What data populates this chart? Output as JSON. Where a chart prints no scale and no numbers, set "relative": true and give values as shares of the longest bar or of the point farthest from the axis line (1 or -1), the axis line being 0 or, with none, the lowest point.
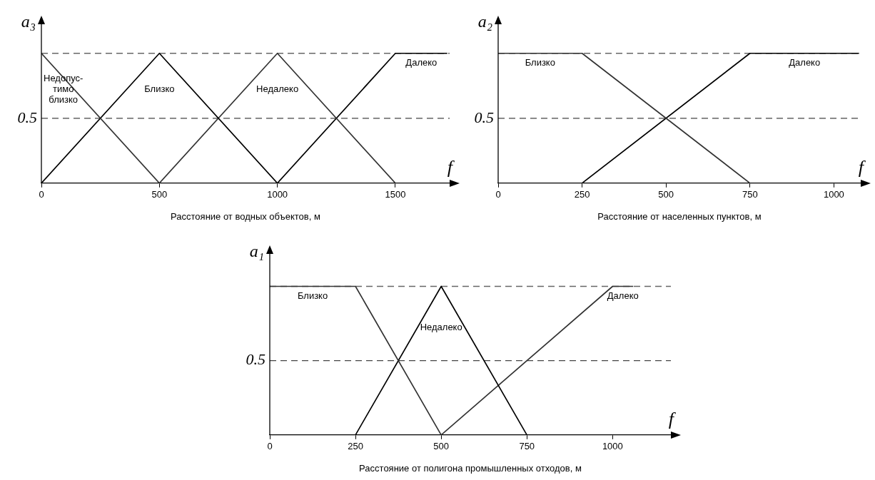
{
  "chart_data": [
    {
      "type": "line",
      "relative": true,
      "ylabel": "a₃",
      "xlabel": "Расстояние от водных объектов, м",
      "annotations": [
        "f"
      ],
      "marker": "none",
      "xlim": [
        0,
        1730
      ],
      "xticks": [
        0,
        500,
        1000,
        1500
      ],
      "series": [
        {
          "name": "Недопус-\nтимо\nблизко",
          "color": "#333333",
          "x": [
            0,
            500
          ],
          "values": [
            1,
            0
          ]
        },
        {
          "name": "Близко",
          "color": "#000000",
          "x": [
            0,
            500,
            1000
          ],
          "values": [
            0,
            1,
            0
          ]
        },
        {
          "name": "Недалеко",
          "color": "#333333",
          "x": [
            500,
            1000,
            1500
          ],
          "values": [
            0,
            1,
            0
          ]
        },
        {
          "name": "Далеко",
          "color": "#000000",
          "x": [
            1000,
            1500,
            1720
          ],
          "values": [
            0,
            1,
            1
          ]
        }
      ],
      "ref_lines": [
        {
          "axis": "y",
          "value": 0.5,
          "label": "0.5",
          "color": "#444444",
          "line_style": "dashed"
        },
        {
          "axis": "y",
          "value": 1,
          "color": "#666666",
          "line_style": "dashed"
        }
      ]
    },
    {
      "type": "line",
      "relative": true,
      "ylabel": "a₂",
      "xlabel": "Расстояние от населенных пунктов, м",
      "annotations": [
        "f"
      ],
      "marker": "none",
      "xlim": [
        0,
        1080
      ],
      "xticks": [
        0,
        250,
        500,
        750,
        1000
      ],
      "series": [
        {
          "name": "Близко",
          "color": "#333333",
          "x": [
            0,
            250,
            750
          ],
          "values": [
            1,
            1,
            0
          ]
        },
        {
          "name": "Далеко",
          "color": "#000000",
          "x": [
            250,
            750,
            1075
          ],
          "values": [
            0,
            1,
            1
          ]
        }
      ],
      "ref_lines": [
        {
          "axis": "y",
          "value": 0.5,
          "label": "0.5",
          "color": "#444444",
          "line_style": "dashed"
        },
        {
          "axis": "y",
          "value": 1,
          "color": "#666666",
          "line_style": "dashed"
        }
      ]
    },
    {
      "type": "line",
      "relative": true,
      "ylabel": "a₁",
      "xlabel": "Расстояние от полигона промышленных отходов, м",
      "annotations": [
        "f"
      ],
      "marker": "none",
      "xlim": [
        0,
        1170
      ],
      "xticks": [
        0,
        250,
        500,
        750,
        1000
      ],
      "series": [
        {
          "name": "Близко",
          "color": "#333333",
          "x": [
            0,
            250,
            500
          ],
          "values": [
            1,
            1,
            0
          ]
        },
        {
          "name": "Недалеко",
          "color": "#000000",
          "x": [
            250,
            500,
            750
          ],
          "values": [
            0,
            1,
            0
          ]
        },
        {
          "name": "Далеко",
          "color": "#333333",
          "x": [
            500,
            1000,
            1060
          ],
          "values": [
            0,
            1,
            1
          ]
        }
      ],
      "ref_lines": [
        {
          "axis": "y",
          "value": 0.5,
          "label": "0.5",
          "color": "#444444",
          "line_style": "dashed"
        },
        {
          "axis": "y",
          "value": 1,
          "color": "#666666",
          "line_style": "dashed"
        }
      ]
    }
  ]
}
